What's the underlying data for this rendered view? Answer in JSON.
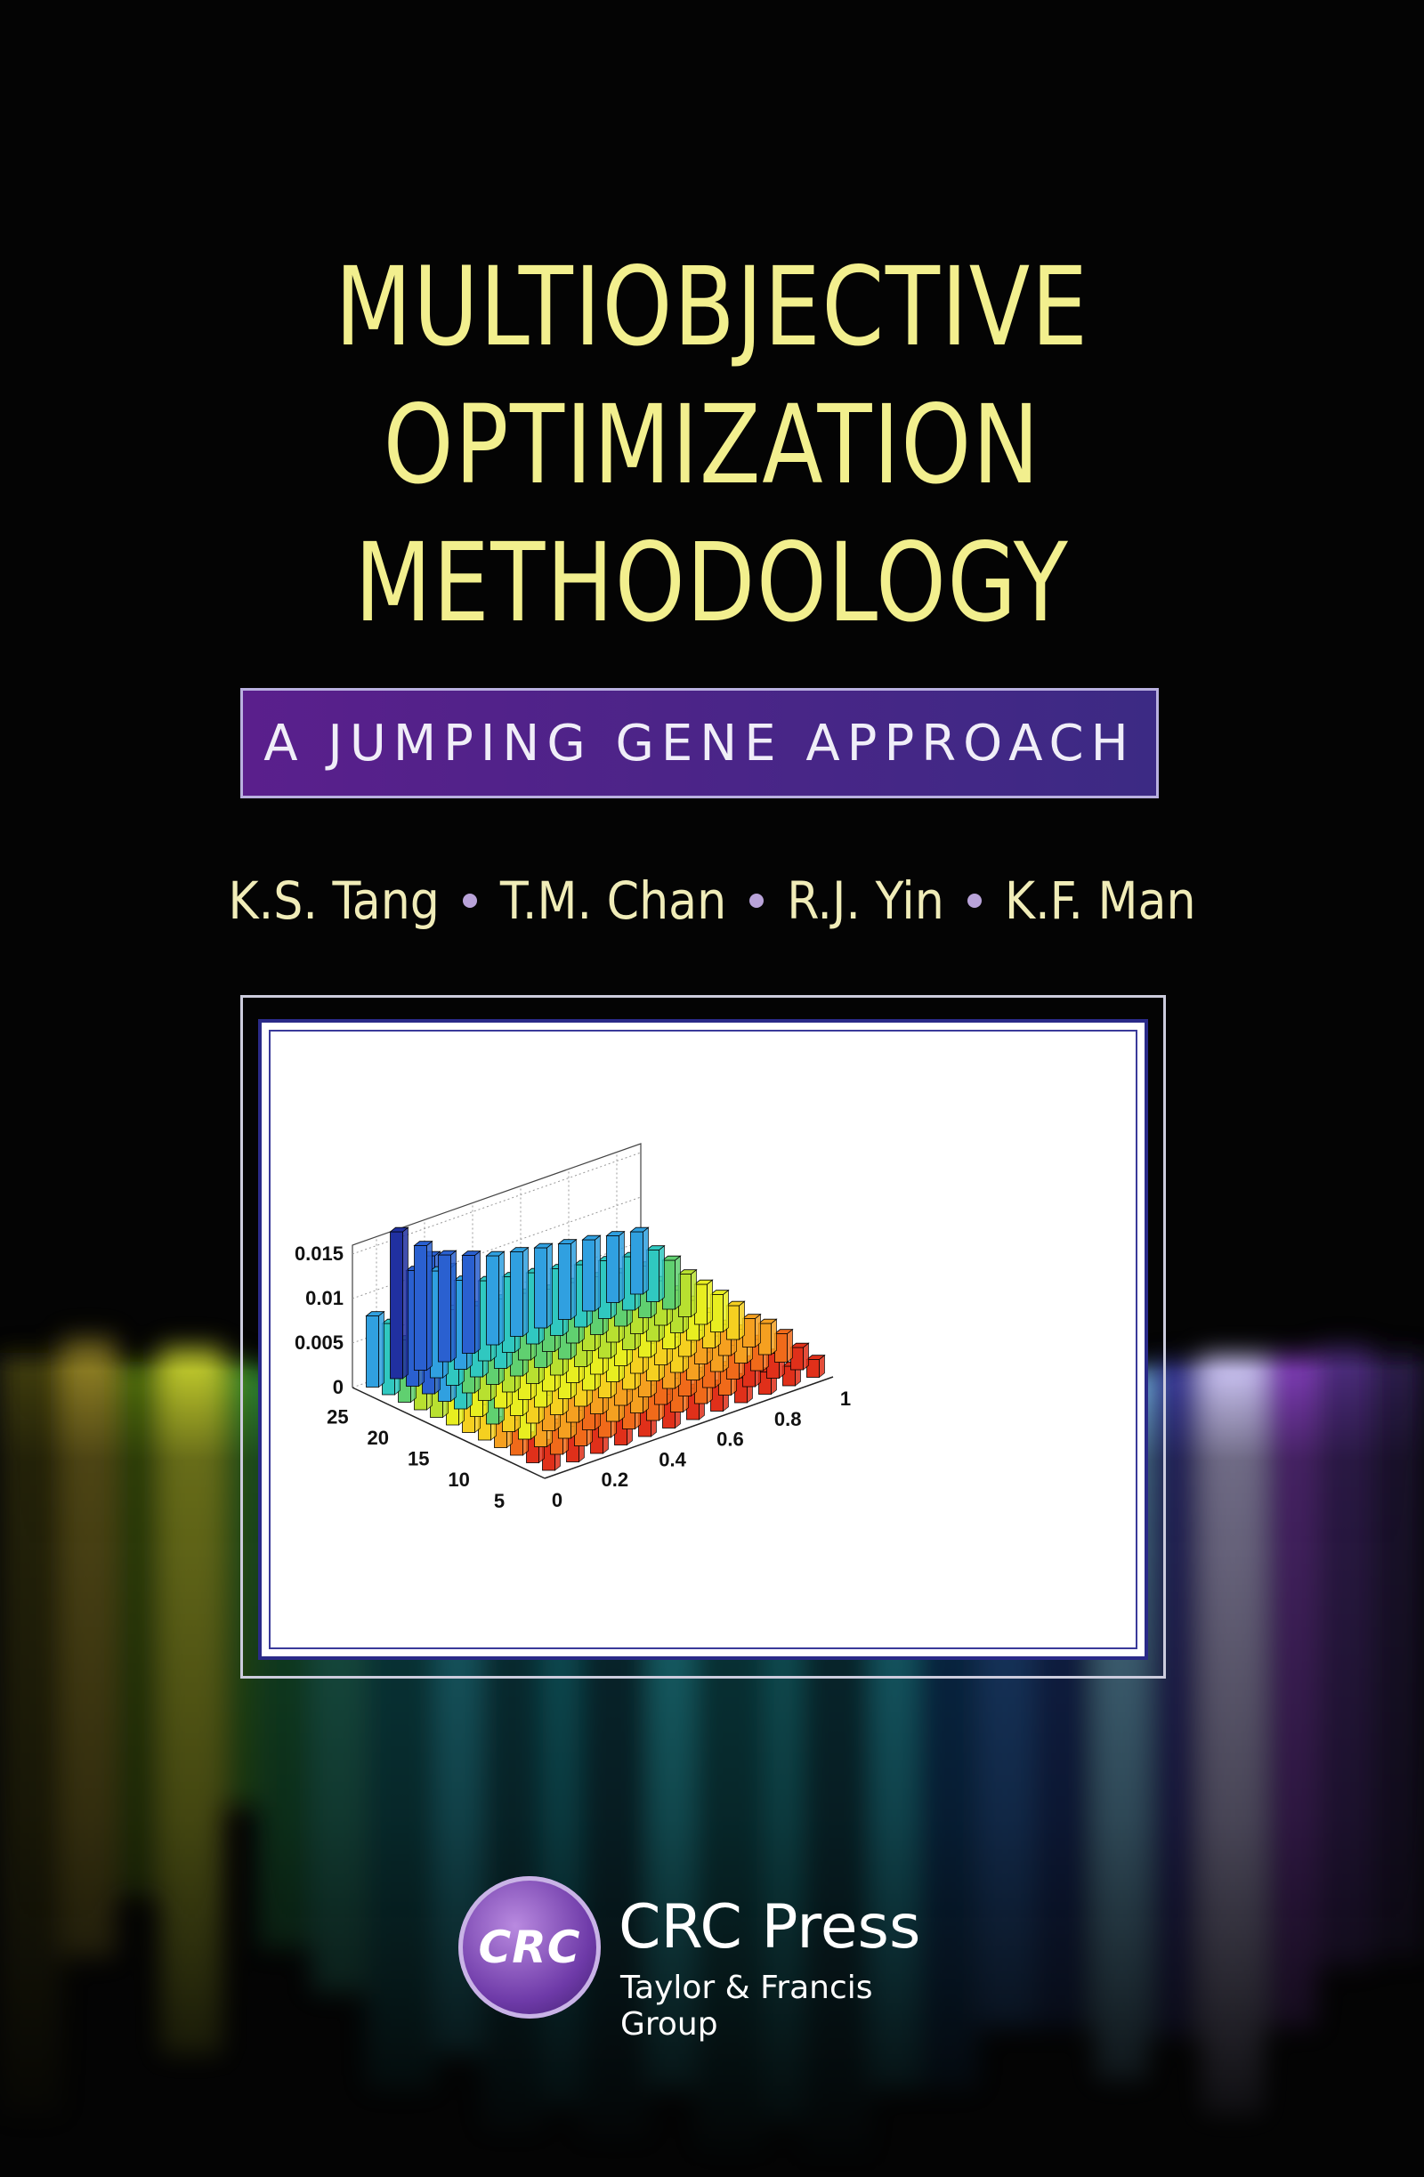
{
  "cover": {
    "title_lines": [
      "MULTIOBJECTIVE",
      "OPTIMIZATION",
      "METHODOLOGY"
    ],
    "subtitle": "A JUMPING GENE APPROACH",
    "authors": [
      "K.S. Tang",
      "T.M. Chan",
      "R.J. Yin",
      "K.F. Man"
    ],
    "publisher": {
      "logo_text": "CRC",
      "name": "CRC Press",
      "group": "Taylor & Francis Group"
    },
    "colors": {
      "title": "#f2ef8e",
      "author_text": "#f0ecb8",
      "bullet": "#b9a3d9",
      "subtitle_bg_left": "#5a1f8c",
      "subtitle_bg_right": "#3c2a84",
      "frame_border": "#2a2a88"
    }
  },
  "chart_data": {
    "type": "bar3d",
    "z_tick_labels": [
      "0",
      "0.005",
      "0.01",
      "0.015"
    ],
    "x_tick_labels": [
      "25",
      "20",
      "15",
      "10",
      "5"
    ],
    "y_tick_labels": [
      "0",
      "0.2",
      "0.4",
      "0.6",
      "0.8",
      "1"
    ],
    "zlim": [
      0,
      0.016
    ],
    "grid": true,
    "rows": [
      {
        "x": 26,
        "values": [
          0.003,
          0.004,
          0.0045,
          0.005,
          0.0042,
          0.0038,
          0.0035,
          0.003,
          0.0028,
          0.0025,
          0.0022,
          0.002
        ]
      },
      {
        "x": 24,
        "values": [
          0.003,
          0.0035,
          0.004,
          0.0045,
          0.0042,
          0.004,
          0.0038,
          0.0036,
          0.0033,
          0.003,
          0.0028,
          0.0025
        ]
      },
      {
        "x": 22,
        "values": [
          0.004,
          0.0055,
          0.0065,
          0.0045,
          0.005,
          0.0048,
          0.0045,
          0.0042,
          0.004,
          0.0038,
          0.0035,
          0.0032
        ]
      },
      {
        "x": 20,
        "values": [
          0.003,
          0.011,
          0.004,
          0.006,
          0.0055,
          0.005,
          0.0048,
          0.0045,
          0.0042,
          0.004,
          0.0038,
          0.0035
        ]
      },
      {
        "x": 18,
        "values": [
          0.004,
          0.005,
          0.006,
          0.0055,
          0.005,
          0.0048,
          0.0045,
          0.0042,
          0.004,
          0.0038,
          0.0035,
          0.0032
        ]
      },
      {
        "x": 16,
        "values": [
          0.005,
          0.013,
          0.006,
          0.0065,
          0.006,
          0.0058,
          0.0055,
          0.005,
          0.0048,
          0.0045,
          0.004,
          0.0038
        ]
      },
      {
        "x": 14,
        "values": [
          0.005,
          0.006,
          0.0068,
          0.0065,
          0.0062,
          0.006,
          0.0058,
          0.0055,
          0.005,
          0.0048,
          0.0045,
          0.0042
        ]
      },
      {
        "x": 12,
        "values": [
          0.006,
          0.014,
          0.007,
          0.0068,
          0.0065,
          0.0062,
          0.006,
          0.0058,
          0.0055,
          0.005,
          0.0048,
          0.0045
        ]
      },
      {
        "x": 10,
        "values": [
          0.006,
          0.015,
          0.0075,
          0.007,
          0.0068,
          0.0065,
          0.0062,
          0.006,
          0.0058,
          0.0055,
          0.005,
          0.0048
        ]
      },
      {
        "x": 8,
        "values": [
          0.007,
          0.0155,
          0.0085,
          0.008,
          0.0078,
          0.0075,
          0.007,
          0.0068,
          0.0065,
          0.006,
          0.0058,
          0.0055
        ]
      },
      {
        "x": 6,
        "values": [
          0.008,
          0.013,
          0.012,
          0.01,
          0.009,
          0.0085,
          0.008,
          0.0075,
          0.007,
          0.0065,
          0.006,
          0.0058
        ]
      },
      {
        "x": 4,
        "values": [
          0.008,
          0.0165,
          0.014,
          0.012,
          0.011,
          0.01,
          0.0095,
          0.009,
          0.0085,
          0.008,
          0.0075,
          0.007
        ]
      }
    ]
  }
}
